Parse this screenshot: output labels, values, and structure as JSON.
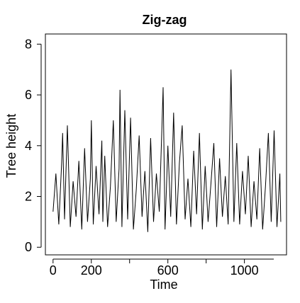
{
  "chart_data": {
    "type": "line",
    "title": "Zig-zag",
    "xlabel": "Time",
    "ylabel": "Tree height",
    "xlim": [
      -40,
      1220
    ],
    "ylim": [
      -0.3,
      8.4
    ],
    "xticks": [
      0,
      200,
      600,
      1000
    ],
    "xtick_labels": [
      "0",
      "200",
      "600",
      "1000"
    ],
    "yticks": [
      0,
      2,
      4,
      6,
      8
    ],
    "ytick_labels": [
      "0",
      "2",
      "4",
      "6",
      "8"
    ],
    "grid": false,
    "legend": "none",
    "colors": {
      "line": "#000000",
      "axis": "#000000",
      "background": "#ffffff"
    },
    "series": [
      {
        "x": [
          0,
          15,
          30,
          45,
          50,
          60,
          75,
          90,
          105,
          120,
          135,
          150,
          165,
          180,
          195,
          200,
          210,
          225,
          240,
          255,
          260,
          270,
          285,
          300,
          315,
          330,
          345,
          350,
          360,
          375,
          390,
          405,
          420,
          435,
          450,
          465,
          480,
          495,
          510,
          525,
          540,
          555,
          570,
          575,
          585,
          600,
          615,
          630,
          645,
          660,
          675,
          690,
          705,
          720,
          735,
          750,
          765,
          780,
          795,
          810,
          825,
          840,
          855,
          870,
          885,
          900,
          915,
          930,
          945,
          960,
          975,
          990,
          1005,
          1020,
          1035,
          1050,
          1065,
          1080,
          1095,
          1110,
          1125,
          1140,
          1155,
          1170,
          1185,
          1190
        ],
        "y": [
          1.4,
          2.9,
          0.9,
          3.3,
          4.5,
          1.1,
          4.8,
          0.8,
          2.6,
          1.2,
          3.4,
          0.7,
          3.9,
          1.0,
          2.7,
          5.0,
          0.9,
          3.2,
          1.3,
          4.2,
          1.0,
          3.6,
          0.8,
          2.4,
          5.0,
          1.0,
          3.1,
          6.2,
          0.8,
          5.4,
          1.1,
          5.1,
          0.7,
          2.3,
          4.4,
          1.2,
          3.0,
          0.6,
          4.3,
          1.0,
          2.9,
          1.4,
          5.0,
          6.3,
          0.7,
          4.0,
          1.2,
          5.3,
          0.9,
          3.3,
          4.8,
          1.1,
          2.7,
          0.8,
          3.8,
          1.3,
          4.5,
          0.7,
          3.2,
          1.0,
          2.5,
          4.1,
          0.8,
          3.5,
          1.2,
          2.8,
          0.9,
          7.0,
          1.0,
          4.1,
          0.9,
          3.0,
          1.3,
          3.6,
          0.8,
          2.6,
          1.1,
          3.9,
          0.7,
          2.4,
          4.5,
          1.0,
          4.6,
          0.8,
          2.9,
          1.0
        ]
      }
    ]
  }
}
